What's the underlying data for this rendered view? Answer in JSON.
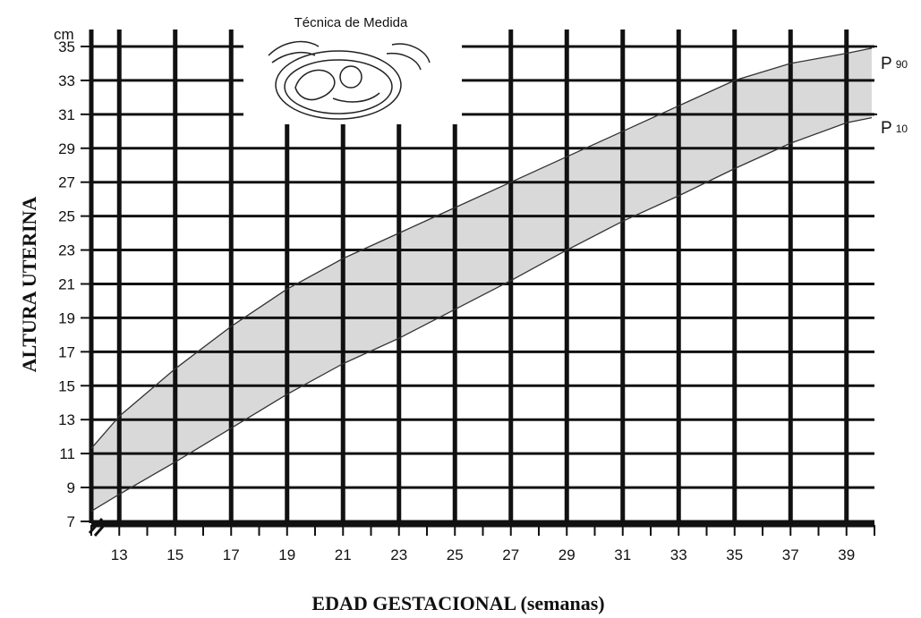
{
  "chart_data": {
    "type": "area",
    "xlabel": "EDAD GESTACIONAL (semanas)",
    "ylabel": "ALTURA UTERINA",
    "y_unit": "cm",
    "xlim": [
      12,
      40
    ],
    "ylim": [
      7,
      36
    ],
    "x_ticks": [
      "13",
      "15",
      "17",
      "19",
      "21",
      "23",
      "25",
      "27",
      "29",
      "31",
      "33",
      "35",
      "37",
      "39"
    ],
    "y_ticks": [
      "7",
      "9",
      "11",
      "13",
      "15",
      "17",
      "19",
      "21",
      "23",
      "25",
      "27",
      "29",
      "31",
      "33",
      "35"
    ],
    "inset_title": "Técnica de Medida",
    "band_fill": "#d9d9d9",
    "grid": true,
    "series": [
      {
        "name": "P90",
        "label_main": "P",
        "label_sub": "90",
        "x": [
          12,
          13,
          15,
          17,
          19,
          21,
          23,
          25,
          27,
          29,
          31,
          33,
          35,
          37,
          39,
          39.9
        ],
        "y": [
          11.3,
          13.2,
          16.0,
          18.5,
          20.7,
          22.5,
          24.0,
          25.5,
          27.0,
          28.5,
          30.0,
          31.5,
          33.0,
          34.0,
          34.6,
          34.9
        ]
      },
      {
        "name": "P10",
        "label_main": "P",
        "label_sub": "10",
        "x": [
          12,
          13,
          15,
          17,
          19,
          21,
          23,
          25,
          27,
          29,
          31,
          33,
          35,
          37,
          39,
          39.9
        ],
        "y": [
          7.6,
          8.6,
          10.5,
          12.5,
          14.5,
          16.3,
          17.8,
          19.5,
          21.2,
          23.0,
          24.7,
          26.2,
          27.8,
          29.3,
          30.5,
          30.8
        ]
      }
    ]
  }
}
